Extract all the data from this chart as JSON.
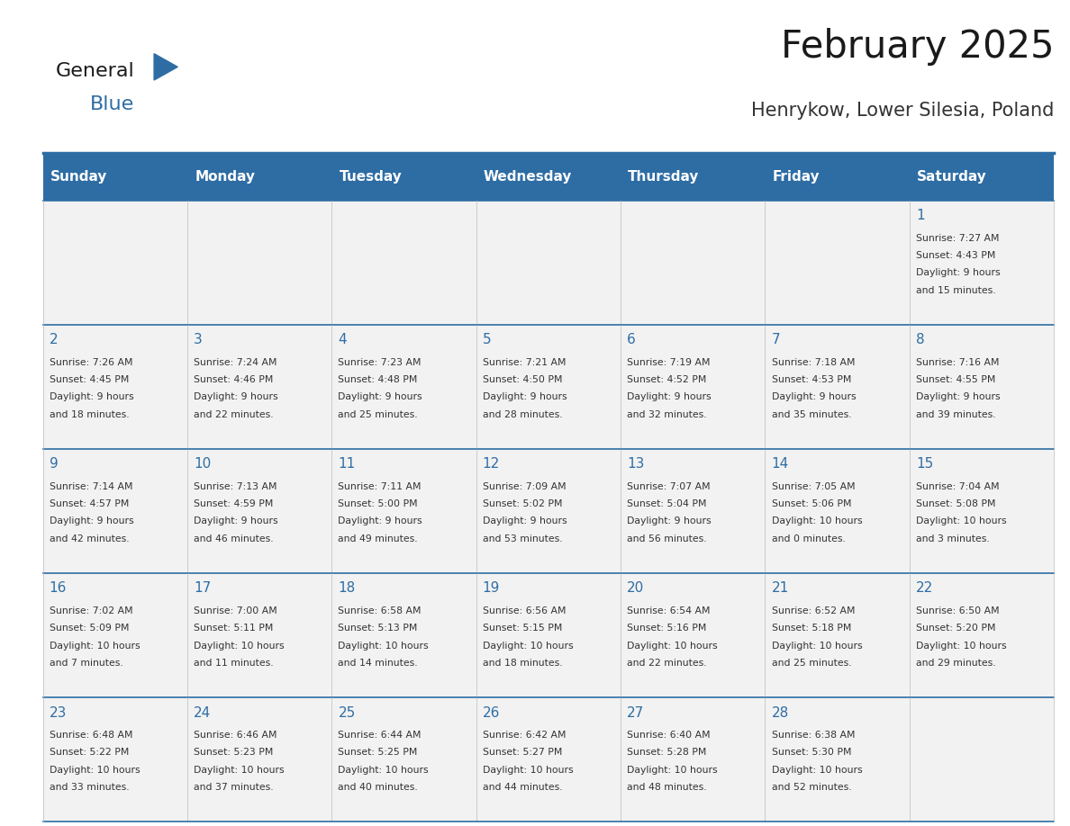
{
  "title": "February 2025",
  "subtitle": "Henrykow, Lower Silesia, Poland",
  "header_bg": "#2E6DA4",
  "header_text_color": "#FFFFFF",
  "cell_bg_light": "#F2F2F2",
  "border_color": "#2E6DA4",
  "day_names": [
    "Sunday",
    "Monday",
    "Tuesday",
    "Wednesday",
    "Thursday",
    "Friday",
    "Saturday"
  ],
  "title_color": "#1a1a1a",
  "subtitle_color": "#333333",
  "day_num_color": "#2E6DA4",
  "info_color": "#333333",
  "logo_general_color": "#1a1a1a",
  "logo_blue_color": "#2E6DA4",
  "calendar": [
    [
      null,
      null,
      null,
      null,
      null,
      null,
      {
        "day": 1,
        "sunrise": "7:27 AM",
        "sunset": "4:43 PM",
        "daylight_line1": "9 hours",
        "daylight_line2": "and 15 minutes."
      }
    ],
    [
      {
        "day": 2,
        "sunrise": "7:26 AM",
        "sunset": "4:45 PM",
        "daylight_line1": "9 hours",
        "daylight_line2": "and 18 minutes."
      },
      {
        "day": 3,
        "sunrise": "7:24 AM",
        "sunset": "4:46 PM",
        "daylight_line1": "9 hours",
        "daylight_line2": "and 22 minutes."
      },
      {
        "day": 4,
        "sunrise": "7:23 AM",
        "sunset": "4:48 PM",
        "daylight_line1": "9 hours",
        "daylight_line2": "and 25 minutes."
      },
      {
        "day": 5,
        "sunrise": "7:21 AM",
        "sunset": "4:50 PM",
        "daylight_line1": "9 hours",
        "daylight_line2": "and 28 minutes."
      },
      {
        "day": 6,
        "sunrise": "7:19 AM",
        "sunset": "4:52 PM",
        "daylight_line1": "9 hours",
        "daylight_line2": "and 32 minutes."
      },
      {
        "day": 7,
        "sunrise": "7:18 AM",
        "sunset": "4:53 PM",
        "daylight_line1": "9 hours",
        "daylight_line2": "and 35 minutes."
      },
      {
        "day": 8,
        "sunrise": "7:16 AM",
        "sunset": "4:55 PM",
        "daylight_line1": "9 hours",
        "daylight_line2": "and 39 minutes."
      }
    ],
    [
      {
        "day": 9,
        "sunrise": "7:14 AM",
        "sunset": "4:57 PM",
        "daylight_line1": "9 hours",
        "daylight_line2": "and 42 minutes."
      },
      {
        "day": 10,
        "sunrise": "7:13 AM",
        "sunset": "4:59 PM",
        "daylight_line1": "9 hours",
        "daylight_line2": "and 46 minutes."
      },
      {
        "day": 11,
        "sunrise": "7:11 AM",
        "sunset": "5:00 PM",
        "daylight_line1": "9 hours",
        "daylight_line2": "and 49 minutes."
      },
      {
        "day": 12,
        "sunrise": "7:09 AM",
        "sunset": "5:02 PM",
        "daylight_line1": "9 hours",
        "daylight_line2": "and 53 minutes."
      },
      {
        "day": 13,
        "sunrise": "7:07 AM",
        "sunset": "5:04 PM",
        "daylight_line1": "9 hours",
        "daylight_line2": "and 56 minutes."
      },
      {
        "day": 14,
        "sunrise": "7:05 AM",
        "sunset": "5:06 PM",
        "daylight_line1": "10 hours",
        "daylight_line2": "and 0 minutes."
      },
      {
        "day": 15,
        "sunrise": "7:04 AM",
        "sunset": "5:08 PM",
        "daylight_line1": "10 hours",
        "daylight_line2": "and 3 minutes."
      }
    ],
    [
      {
        "day": 16,
        "sunrise": "7:02 AM",
        "sunset": "5:09 PM",
        "daylight_line1": "10 hours",
        "daylight_line2": "and 7 minutes."
      },
      {
        "day": 17,
        "sunrise": "7:00 AM",
        "sunset": "5:11 PM",
        "daylight_line1": "10 hours",
        "daylight_line2": "and 11 minutes."
      },
      {
        "day": 18,
        "sunrise": "6:58 AM",
        "sunset": "5:13 PM",
        "daylight_line1": "10 hours",
        "daylight_line2": "and 14 minutes."
      },
      {
        "day": 19,
        "sunrise": "6:56 AM",
        "sunset": "5:15 PM",
        "daylight_line1": "10 hours",
        "daylight_line2": "and 18 minutes."
      },
      {
        "day": 20,
        "sunrise": "6:54 AM",
        "sunset": "5:16 PM",
        "daylight_line1": "10 hours",
        "daylight_line2": "and 22 minutes."
      },
      {
        "day": 21,
        "sunrise": "6:52 AM",
        "sunset": "5:18 PM",
        "daylight_line1": "10 hours",
        "daylight_line2": "and 25 minutes."
      },
      {
        "day": 22,
        "sunrise": "6:50 AM",
        "sunset": "5:20 PM",
        "daylight_line1": "10 hours",
        "daylight_line2": "and 29 minutes."
      }
    ],
    [
      {
        "day": 23,
        "sunrise": "6:48 AM",
        "sunset": "5:22 PM",
        "daylight_line1": "10 hours",
        "daylight_line2": "and 33 minutes."
      },
      {
        "day": 24,
        "sunrise": "6:46 AM",
        "sunset": "5:23 PM",
        "daylight_line1": "10 hours",
        "daylight_line2": "and 37 minutes."
      },
      {
        "day": 25,
        "sunrise": "6:44 AM",
        "sunset": "5:25 PM",
        "daylight_line1": "10 hours",
        "daylight_line2": "and 40 minutes."
      },
      {
        "day": 26,
        "sunrise": "6:42 AM",
        "sunset": "5:27 PM",
        "daylight_line1": "10 hours",
        "daylight_line2": "and 44 minutes."
      },
      {
        "day": 27,
        "sunrise": "6:40 AM",
        "sunset": "5:28 PM",
        "daylight_line1": "10 hours",
        "daylight_line2": "and 48 minutes."
      },
      {
        "day": 28,
        "sunrise": "6:38 AM",
        "sunset": "5:30 PM",
        "daylight_line1": "10 hours",
        "daylight_line2": "and 52 minutes."
      },
      null
    ]
  ]
}
